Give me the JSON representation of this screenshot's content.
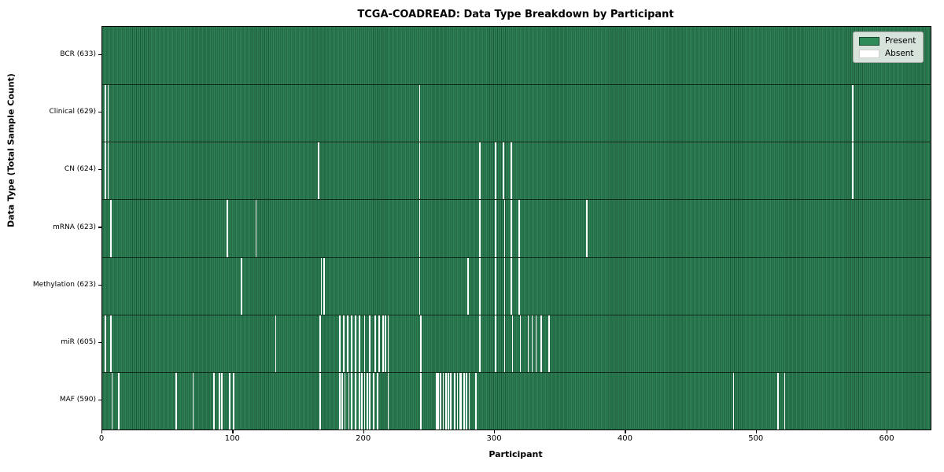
{
  "colors": {
    "present": "#2e8b57",
    "present_edge": "#1d5a3a",
    "absent": "#ffffff",
    "axis": "#000000",
    "legend_bg": "#eaeeea"
  },
  "legend": {
    "present_label": "Present",
    "absent_label": "Absent"
  },
  "chart_data": {
    "type": "heatmap",
    "title": "TCGA-COADREAD: Data Type Breakdown by Participant",
    "xlabel": "Participant",
    "ylabel": "Data Type (Total Sample Count)",
    "x_ticks": [
      0,
      100,
      200,
      300,
      400,
      500,
      600
    ],
    "xlim": [
      0,
      633
    ],
    "n_participants": 633,
    "grid": false,
    "legend_position": "upper right",
    "legend_entries": [
      {
        "label": "Present",
        "color": "#2e8b57"
      },
      {
        "label": "Absent",
        "color": "#ffffff"
      }
    ],
    "rows": [
      {
        "label": "BCR (633)",
        "name": "BCR",
        "present_count": 633,
        "absent_participants": []
      },
      {
        "label": "Clinical (629)",
        "name": "Clinical",
        "present_count": 629,
        "absent_participants": [
          2,
          4,
          242,
          573
        ]
      },
      {
        "label": "CN (624)",
        "name": "CN",
        "present_count": 624,
        "absent_participants": [
          2,
          4,
          165,
          242,
          288,
          300,
          306,
          312,
          573
        ]
      },
      {
        "label": "mRNA (623)",
        "name": "mRNA",
        "present_count": 623,
        "absent_participants": [
          6,
          95,
          117,
          242,
          288,
          300,
          307,
          312,
          318,
          370
        ]
      },
      {
        "label": "Methylation (623)",
        "name": "Methylation",
        "present_count": 623,
        "absent_participants": [
          106,
          167,
          169,
          242,
          279,
          288,
          300,
          307,
          312,
          318
        ]
      },
      {
        "label": "miR (605)",
        "name": "miR",
        "present_count": 605,
        "absent_participants": [
          2,
          6,
          132,
          166,
          181,
          184,
          187,
          190,
          193,
          196,
          200,
          204,
          208,
          211,
          214,
          216,
          218,
          243,
          288,
          300,
          307,
          313,
          319,
          325,
          328,
          331,
          335,
          341
        ]
      },
      {
        "label": "MAF (590)",
        "name": "MAF",
        "present_count": 590,
        "absent_participants": [
          7,
          12,
          56,
          69,
          85,
          89,
          91,
          97,
          100,
          166,
          181,
          183,
          185,
          188,
          190,
          193,
          196,
          198,
          200,
          202,
          204,
          207,
          210,
          218,
          243,
          255,
          256,
          258,
          260,
          262,
          264,
          266,
          269,
          271,
          273,
          274,
          276,
          278,
          280,
          285,
          482,
          516,
          521
        ]
      }
    ]
  }
}
